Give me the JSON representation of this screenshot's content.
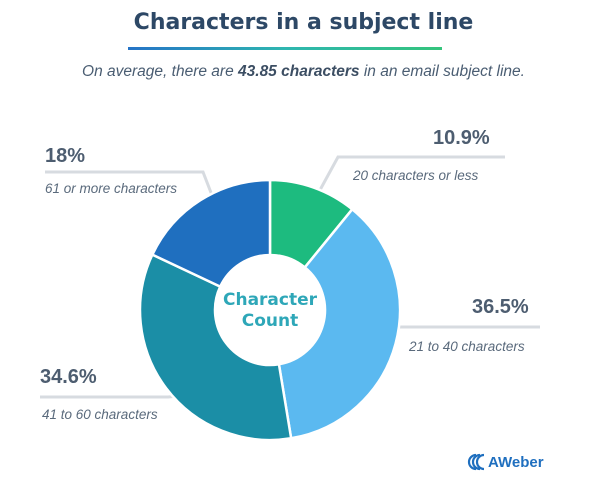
{
  "title": "Characters in a subject line",
  "subtitle": {
    "prefix": "On average, there are ",
    "highlight": "43.85 characters",
    "suffix": " in an email subject line."
  },
  "center_label": [
    "Character",
    "Count"
  ],
  "brand": "AWeber",
  "chart_data": {
    "type": "pie",
    "donut": true,
    "slices": [
      {
        "percent_label": "10.9%",
        "value": 10.9,
        "label": "20 characters or less",
        "color": "#1dbb7f"
      },
      {
        "percent_label": "36.5%",
        "value": 36.5,
        "label": "21 to 40 characters",
        "color": "#5bb9f0"
      },
      {
        "percent_label": "34.6%",
        "value": 34.6,
        "label": "41 to 60 characters",
        "color": "#1b8ea6"
      },
      {
        "percent_label": "18%",
        "value": 18.0,
        "label": "61 or more characters",
        "color": "#1f6fbf"
      }
    ]
  }
}
